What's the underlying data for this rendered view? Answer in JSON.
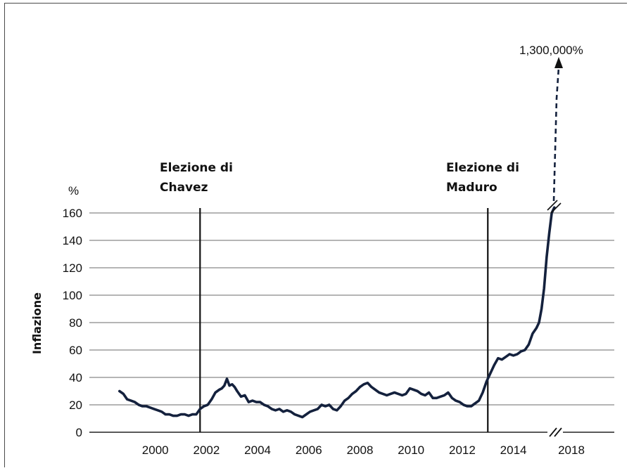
{
  "chart_data": {
    "type": "line",
    "title": "",
    "xlabel": "",
    "ylabel": "Inflazione",
    "y_unit": "%",
    "ylim": [
      0,
      160
    ],
    "y_ticks": [
      0,
      20,
      40,
      60,
      80,
      100,
      120,
      140,
      160
    ],
    "xlim": [
      1998,
      2018
    ],
    "x_ticks": [
      2000,
      2002,
      2004,
      2006,
      2008,
      2010,
      2012,
      2014,
      2018
    ],
    "x_tick_labels": [
      "2000",
      "2002",
      "2004",
      "2006",
      "2008",
      "2010",
      "2012",
      "2014",
      "2018"
    ],
    "grid": "horizontal",
    "axis_breaks": "x-axis between 2014 and 2018; top of y-axis above 160",
    "events": [
      {
        "x": 2001.75,
        "label_line1": "Elezione di",
        "label_line2": "Chavez"
      },
      {
        "x": 2013.0,
        "label_line1": "Elezione di",
        "label_line2": "Maduro"
      }
    ],
    "annotation": {
      "text": "1,300,000%",
      "style": "dashed arrow from the series end"
    },
    "series": [
      {
        "color": "#14213d",
        "x": [
          1998.6,
          1998.75,
          1998.9,
          1999.05,
          1999.2,
          1999.35,
          1999.5,
          1999.65,
          1999.8,
          1999.95,
          2000.1,
          2000.25,
          2000.4,
          2000.55,
          2000.7,
          2000.85,
          2001.0,
          2001.15,
          2001.3,
          2001.45,
          2001.6,
          2001.75,
          2001.9,
          2002.05,
          2002.2,
          2002.35,
          2002.5,
          2002.6,
          2002.7,
          2002.8,
          2002.9,
          2003.0,
          2003.1,
          2003.2,
          2003.35,
          2003.5,
          2003.65,
          2003.8,
          2003.95,
          2004.1,
          2004.25,
          2004.4,
          2004.55,
          2004.7,
          2004.85,
          2005.0,
          2005.15,
          2005.3,
          2005.45,
          2005.6,
          2005.75,
          2005.9,
          2006.05,
          2006.2,
          2006.35,
          2006.5,
          2006.65,
          2006.8,
          2006.95,
          2007.1,
          2007.25,
          2007.4,
          2007.55,
          2007.7,
          2007.85,
          2008.0,
          2008.15,
          2008.3,
          2008.45,
          2008.6,
          2008.75,
          2008.9,
          2009.05,
          2009.2,
          2009.35,
          2009.5,
          2009.65,
          2009.8,
          2009.95,
          2010.1,
          2010.25,
          2010.4,
          2010.55,
          2010.7,
          2010.85,
          2011.0,
          2011.15,
          2011.3,
          2011.45,
          2011.6,
          2011.75,
          2011.9,
          2012.05,
          2012.2,
          2012.35,
          2012.5,
          2012.65,
          2012.8,
          2012.95,
          2013.1,
          2013.25,
          2013.4,
          2013.55,
          2013.7,
          2013.85,
          2014.0,
          2014.15,
          2014.3,
          2014.45,
          2014.6,
          2014.75,
          2014.9,
          2015.0,
          2015.1,
          2015.2,
          2015.3,
          2015.4,
          2015.5,
          2015.6
        ],
        "y": [
          30,
          28,
          24,
          23,
          22,
          20,
          19,
          19,
          18,
          17,
          16,
          15,
          13,
          13,
          12,
          12,
          13,
          13,
          12,
          13,
          13,
          17,
          19,
          20,
          24,
          29,
          31,
          32,
          34,
          39,
          34,
          35,
          33,
          30,
          26,
          27,
          22,
          23,
          22,
          22,
          20,
          19,
          17,
          16,
          17,
          15,
          16,
          15,
          13,
          12,
          11,
          13,
          15,
          16,
          17,
          20,
          19,
          20,
          17,
          16,
          19,
          23,
          25,
          28,
          30,
          33,
          35,
          36,
          33,
          31,
          29,
          28,
          27,
          28,
          29,
          28,
          27,
          28,
          32,
          31,
          30,
          28,
          27,
          29,
          25,
          25,
          26,
          27,
          29,
          25,
          23,
          22,
          20,
          19,
          19,
          21,
          23,
          29,
          37,
          43,
          49,
          54,
          53,
          55,
          57,
          56,
          57,
          59,
          60,
          64,
          72,
          76,
          80,
          90,
          105,
          128,
          145,
          160,
          164
        ]
      }
    ]
  }
}
